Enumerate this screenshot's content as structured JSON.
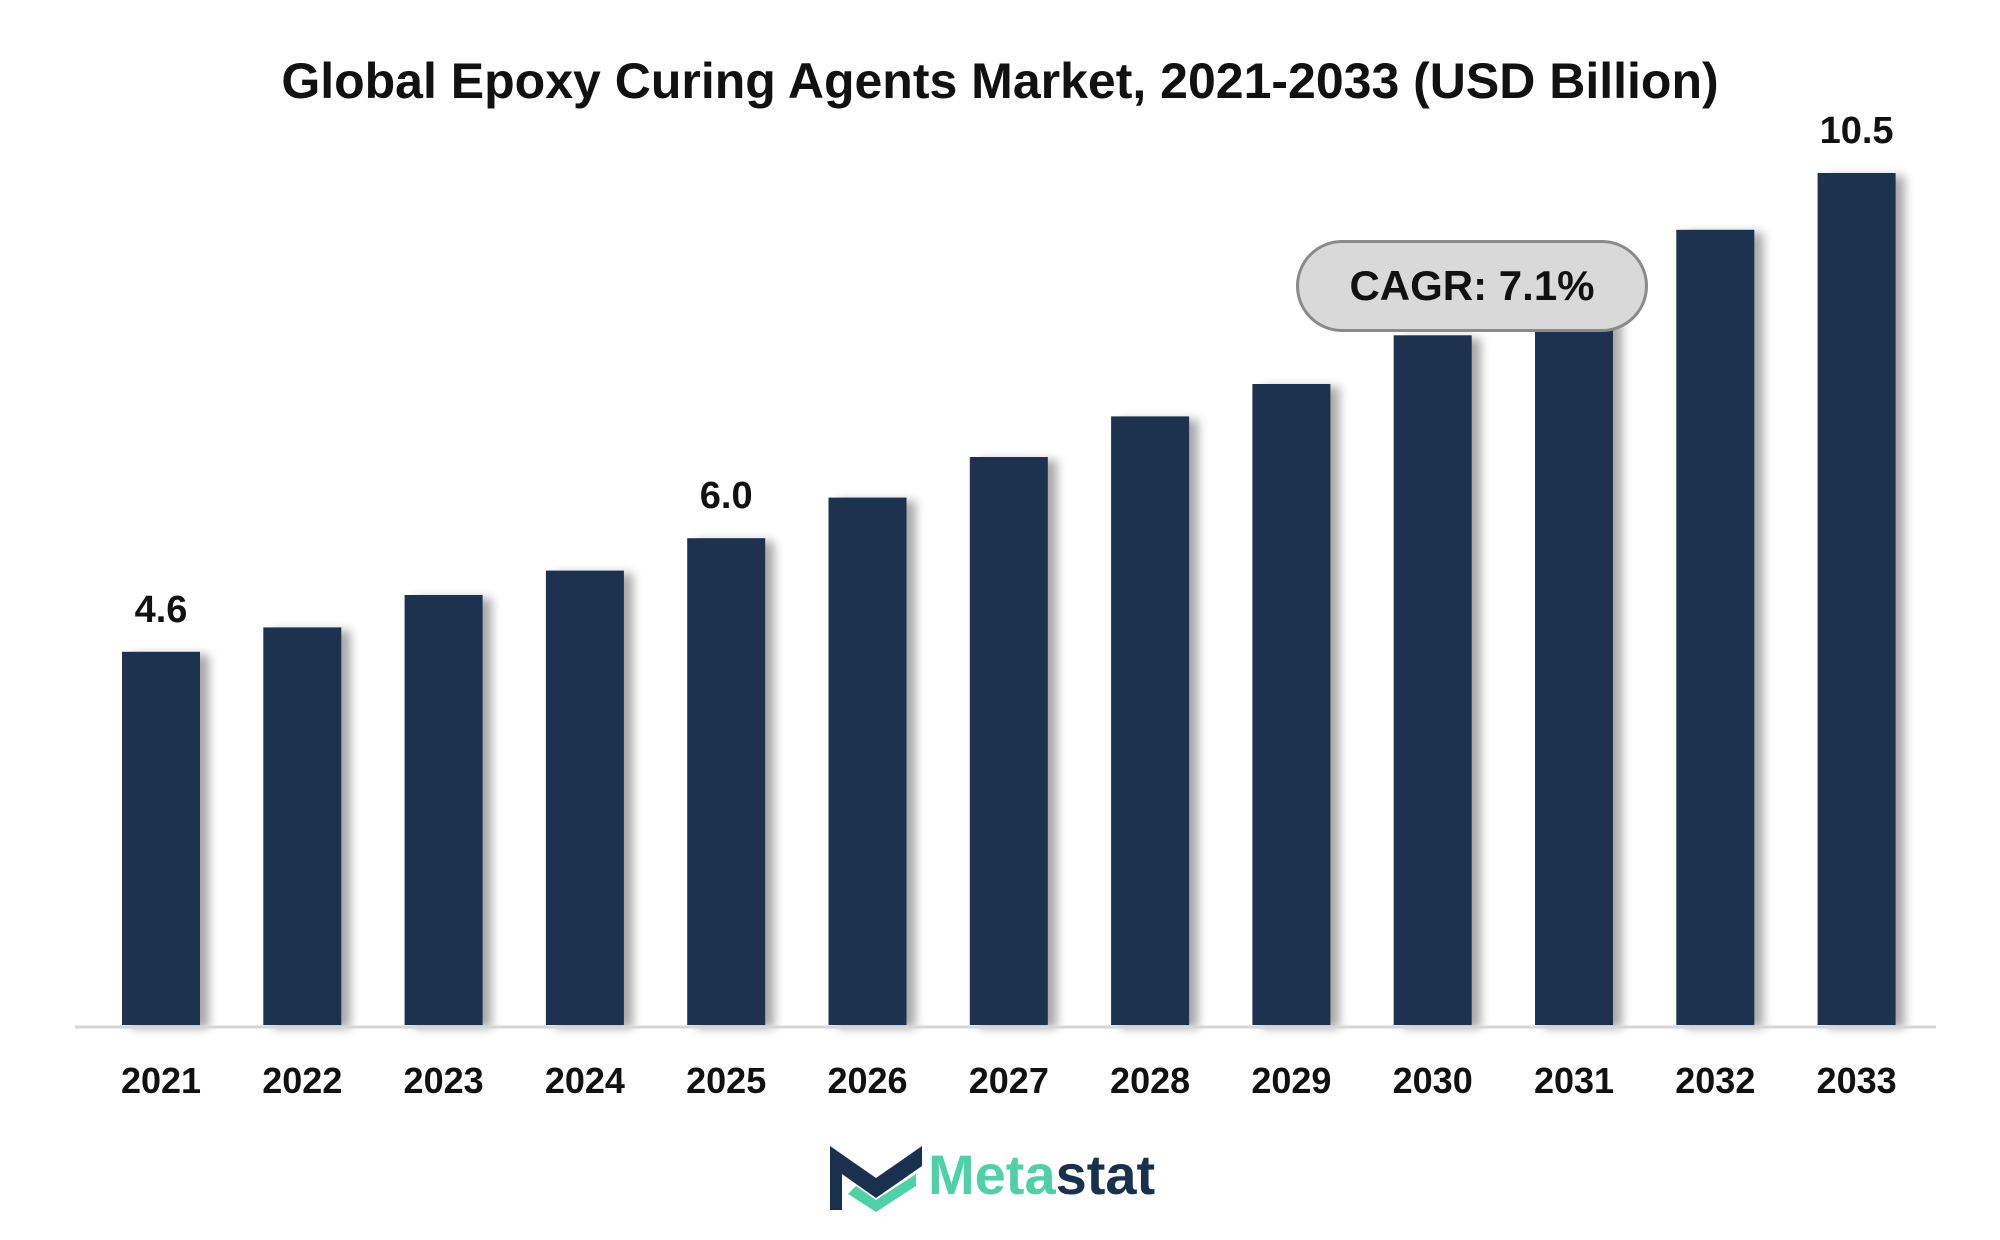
{
  "chart_data": {
    "type": "bar",
    "title": "Global Epoxy Curing Agents Market, 2021-2033 (USD Billion)",
    "xlabel": "",
    "ylabel": "",
    "categories": [
      "2021",
      "2022",
      "2023",
      "2024",
      "2025",
      "2026",
      "2027",
      "2028",
      "2029",
      "2030",
      "2031",
      "2032",
      "2033"
    ],
    "values": [
      4.6,
      4.9,
      5.3,
      5.6,
      6.0,
      6.5,
      7.0,
      7.5,
      7.9,
      8.5,
      9.2,
      9.8,
      10.5
    ],
    "data_labels": {
      "0": "4.6",
      "4": "6.0",
      "12": "10.5"
    },
    "ylim": [
      0,
      11.4
    ],
    "grid": false,
    "legend": "none",
    "annotation": "CAGR: 7.1%",
    "bar_color": "#1a3150"
  },
  "brand": {
    "name_part1": "Meta",
    "name_part2": "stat",
    "color_primary": "#19304f",
    "color_accent": "#4fd1a8"
  }
}
